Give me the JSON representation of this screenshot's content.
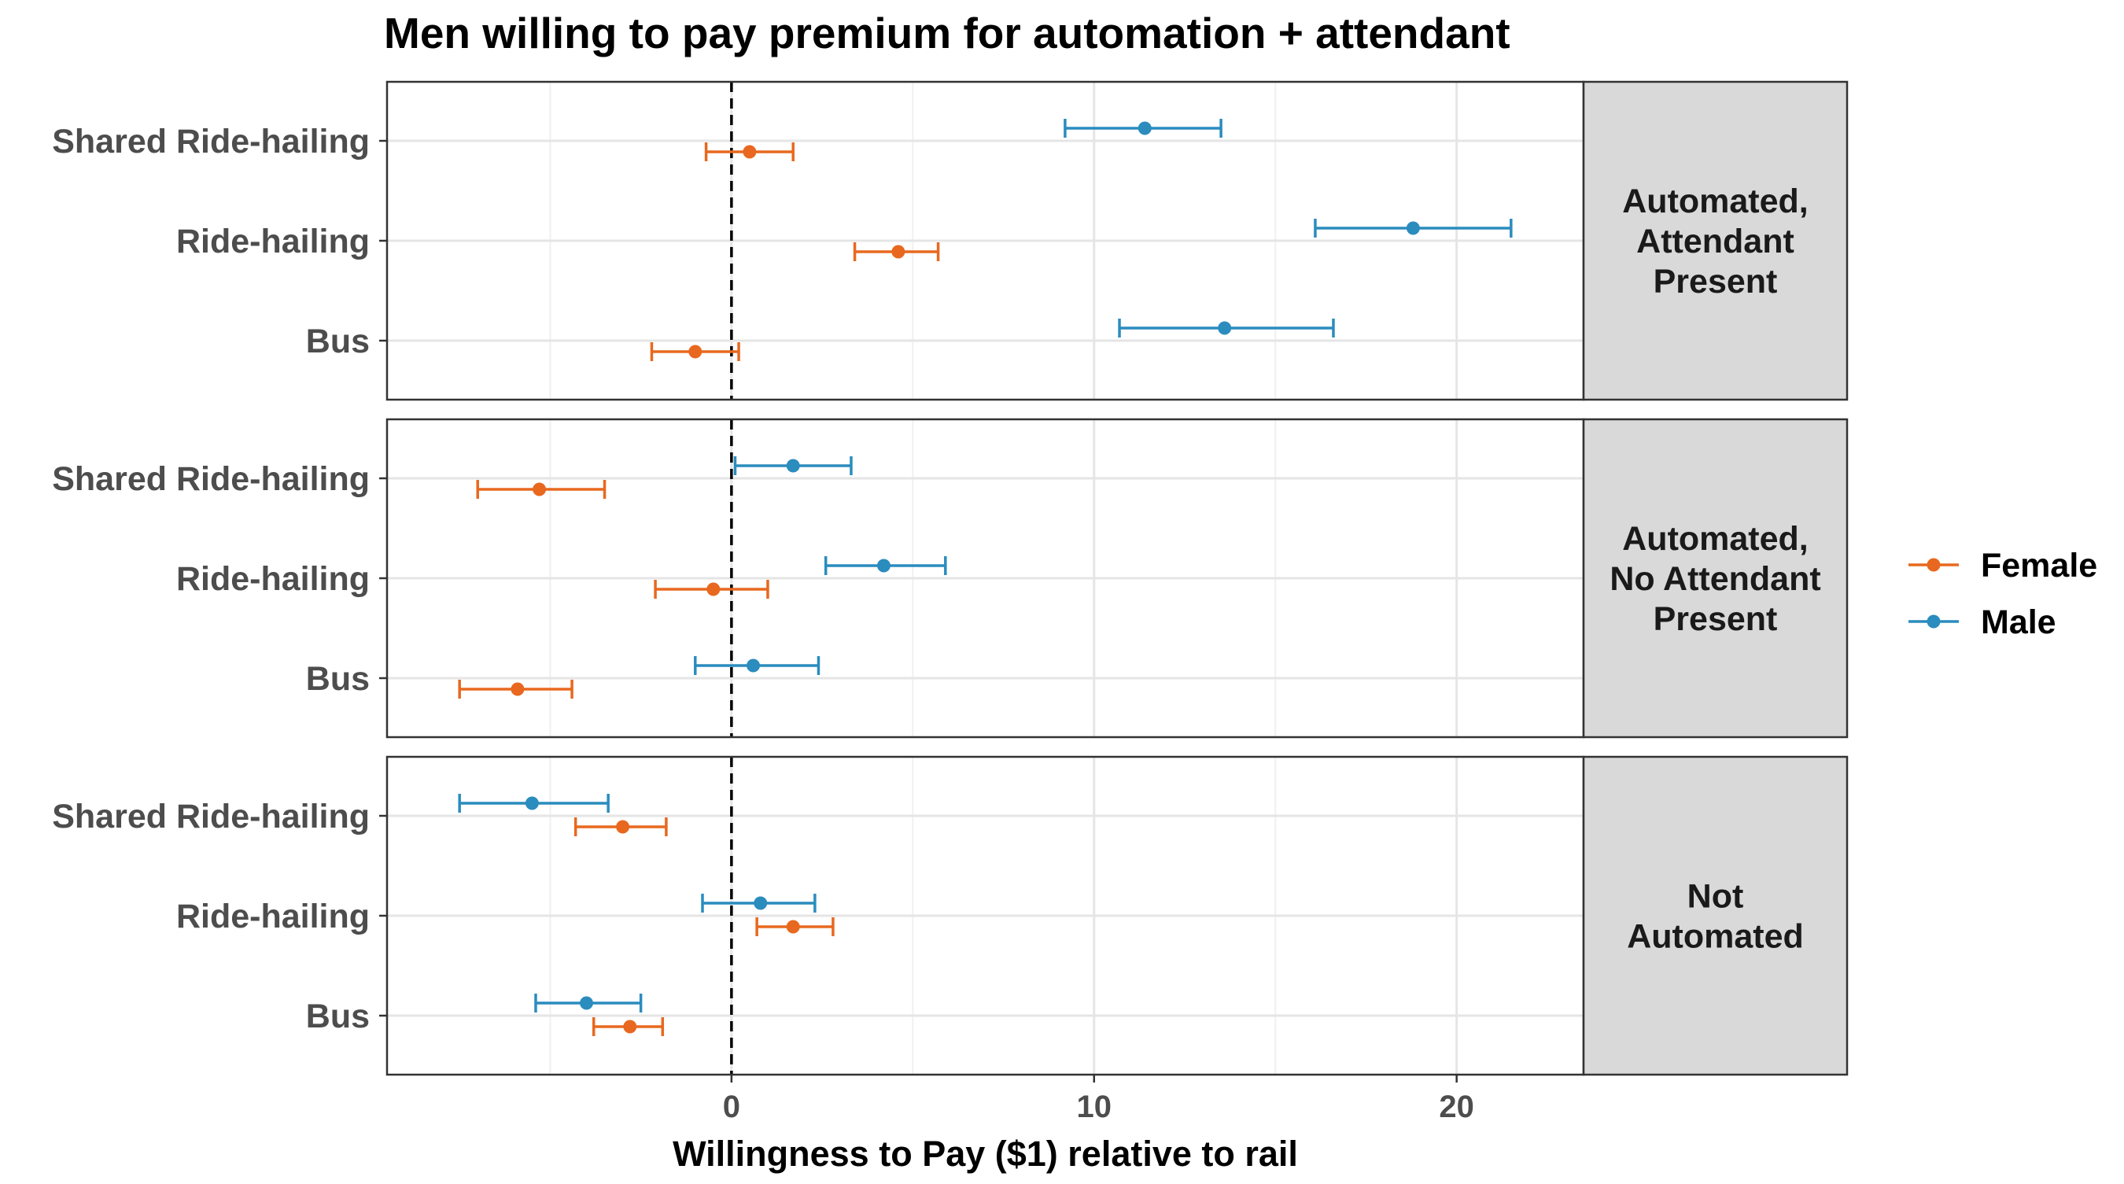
{
  "title": "Men willing to pay premium for automation + attendant",
  "chart_data": {
    "type": "errorbar",
    "title": "Men willing to pay premium for automation + attendant",
    "xlabel": "Willingness to Pay ($1) relative to rail",
    "ylabel": "",
    "xlim": [
      -9.5,
      23.5
    ],
    "xticks": [
      0,
      10,
      20
    ],
    "xtick_labels": [
      "0",
      "10",
      "20"
    ],
    "reference_line": {
      "x": 0,
      "style": "dashed"
    },
    "grid": true,
    "categories": [
      "Shared Ride-hailing",
      "Ride-hailing",
      "Bus"
    ],
    "legend": {
      "position": "right",
      "entries": [
        {
          "name": "Female",
          "color": "#e8681f"
        },
        {
          "name": "Male",
          "color": "#2b8cbe"
        }
      ]
    },
    "panels": [
      {
        "label": "Automated, Attendant Present",
        "label_lines": [
          "Automated,",
          "Attendant",
          "Present"
        ],
        "series": [
          {
            "name": "Female",
            "points": [
              {
                "category": "Shared Ride-hailing",
                "estimate": 0.5,
                "low": -0.7,
                "high": 1.7
              },
              {
                "category": "Ride-hailing",
                "estimate": 4.6,
                "low": 3.4,
                "high": 5.7
              },
              {
                "category": "Bus",
                "estimate": -1.0,
                "low": -2.2,
                "high": 0.2
              }
            ]
          },
          {
            "name": "Male",
            "points": [
              {
                "category": "Shared Ride-hailing",
                "estimate": 11.4,
                "low": 9.2,
                "high": 13.5
              },
              {
                "category": "Ride-hailing",
                "estimate": 18.8,
                "low": 16.1,
                "high": 21.5
              },
              {
                "category": "Bus",
                "estimate": 13.6,
                "low": 10.7,
                "high": 16.6
              }
            ]
          }
        ]
      },
      {
        "label": "Automated, No Attendant Present",
        "label_lines": [
          "Automated,",
          "No Attendant",
          "Present"
        ],
        "series": [
          {
            "name": "Female",
            "points": [
              {
                "category": "Shared Ride-hailing",
                "estimate": -5.3,
                "low": -7.0,
                "high": -3.5
              },
              {
                "category": "Ride-hailing",
                "estimate": -0.5,
                "low": -2.1,
                "high": 1.0
              },
              {
                "category": "Bus",
                "estimate": -5.9,
                "low": -7.5,
                "high": -4.4
              }
            ]
          },
          {
            "name": "Male",
            "points": [
              {
                "category": "Shared Ride-hailing",
                "estimate": 1.7,
                "low": 0.1,
                "high": 3.3
              },
              {
                "category": "Ride-hailing",
                "estimate": 4.2,
                "low": 2.6,
                "high": 5.9
              },
              {
                "category": "Bus",
                "estimate": 0.6,
                "low": -1.0,
                "high": 2.4
              }
            ]
          }
        ]
      },
      {
        "label": "Not Automated",
        "label_lines": [
          "Not",
          "Automated"
        ],
        "series": [
          {
            "name": "Female",
            "points": [
              {
                "category": "Shared Ride-hailing",
                "estimate": -3.0,
                "low": -4.3,
                "high": -1.8
              },
              {
                "category": "Ride-hailing",
                "estimate": 1.7,
                "low": 0.7,
                "high": 2.8
              },
              {
                "category": "Bus",
                "estimate": -2.8,
                "low": -3.8,
                "high": -1.9
              }
            ]
          },
          {
            "name": "Male",
            "points": [
              {
                "category": "Shared Ride-hailing",
                "estimate": -5.5,
                "low": -7.5,
                "high": -3.4
              },
              {
                "category": "Ride-hailing",
                "estimate": 0.8,
                "low": -0.8,
                "high": 2.3
              },
              {
                "category": "Bus",
                "estimate": -4.0,
                "low": -5.4,
                "high": -2.5
              }
            ]
          }
        ]
      }
    ]
  }
}
